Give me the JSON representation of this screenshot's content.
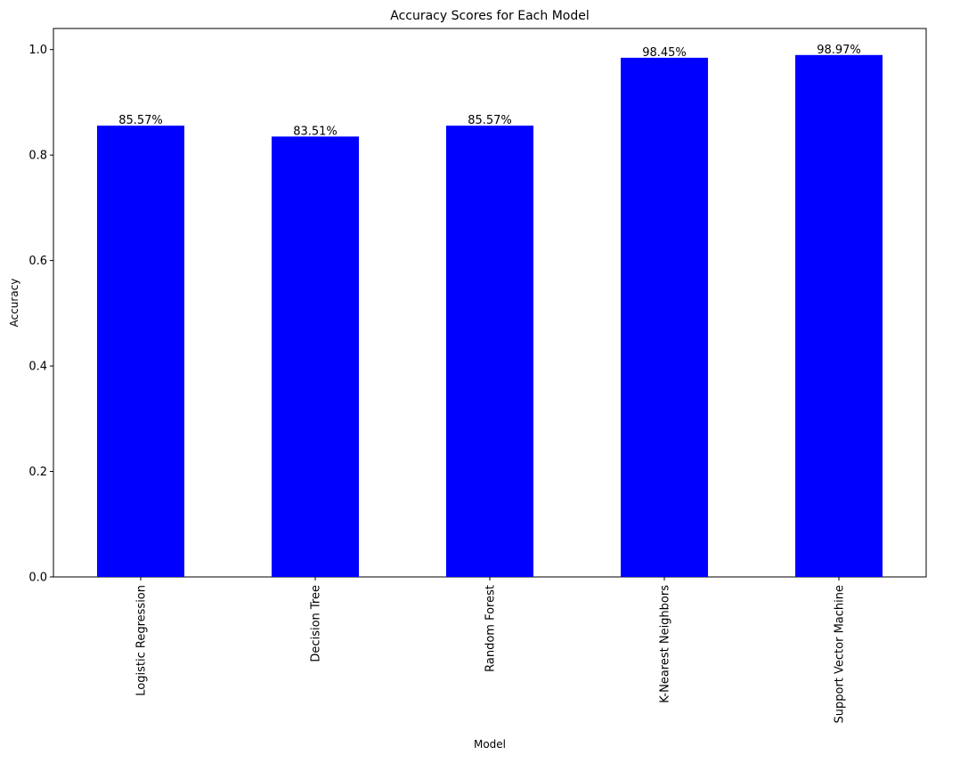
{
  "chart_data": {
    "type": "bar",
    "title": "Accuracy Scores for Each Model",
    "xlabel": "Model",
    "ylabel": "Accuracy",
    "categories": [
      "Logistic Regression",
      "Decision Tree",
      "Random Forest",
      "K-Nearest Neighbors",
      "Support Vector Machine"
    ],
    "values": [
      0.8557,
      0.8351,
      0.8557,
      0.9845,
      0.9897
    ],
    "data_labels": [
      "85.57%",
      "83.51%",
      "85.57%",
      "98.45%",
      "98.97%"
    ],
    "ylim": [
      0,
      1.04
    ],
    "yticks": [
      0.0,
      0.2,
      0.4,
      0.6,
      0.8,
      1.0
    ],
    "ytick_labels": [
      "0.0",
      "0.2",
      "0.4",
      "0.6",
      "0.8",
      "1.0"
    ],
    "bar_color": "#0000ff",
    "grid": false,
    "legend": "none"
  }
}
